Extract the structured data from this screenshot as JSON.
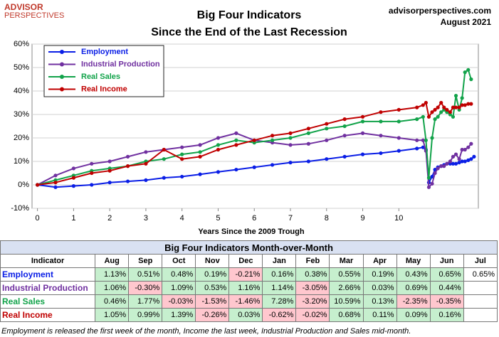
{
  "header": {
    "logo_top": "ADVISOR",
    "logo_bottom": "PERSPECTIVES",
    "site": "advisorperspectives.com",
    "date": "August 2021"
  },
  "chart_data": {
    "type": "line",
    "title": "Big Four Indicators",
    "subtitle": "Since the End of the Last Recession",
    "xlabel": "Years Since the 2009 Trough",
    "x": [
      0,
      0.5,
      1,
      1.5,
      2,
      2.5,
      3,
      3.5,
      4,
      4.5,
      5,
      5.5,
      6,
      6.5,
      7,
      7.5,
      8,
      8.5,
      9,
      9.5,
      10,
      10.5,
      10.67,
      10.75,
      10.83,
      10.92,
      11,
      11.08,
      11.17,
      11.25,
      11.33,
      11.42,
      11.5,
      11.58,
      11.67,
      11.75,
      11.83,
      11.92,
      12,
      12.08
    ],
    "xlim": [
      -0.15,
      12.2
    ],
    "xticks": [
      0,
      1,
      2,
      3,
      4,
      5,
      6,
      7,
      8,
      9,
      10
    ],
    "ylim": [
      -10,
      60
    ],
    "yticks": [
      {
        "value": -10,
        "label": "-10%"
      },
      {
        "value": 0,
        "label": "0%"
      },
      {
        "value": 10,
        "label": "10%"
      },
      {
        "value": 20,
        "label": "20%"
      },
      {
        "value": 30,
        "label": "30%"
      },
      {
        "value": 40,
        "label": "40%"
      },
      {
        "value": 50,
        "label": "50%"
      },
      {
        "value": 60,
        "label": "60%"
      }
    ],
    "grid": true,
    "legend": "upper left",
    "series": [
      {
        "name": "Employment",
        "color": "#0a1ee6",
        "values": [
          0,
          -1,
          -0.5,
          0,
          1,
          1.5,
          2,
          3,
          3.5,
          4.5,
          5.5,
          6.5,
          7.5,
          8.5,
          9.5,
          10,
          11,
          12,
          13,
          13.5,
          14.5,
          15.5,
          16,
          15,
          1,
          3.5,
          6.5,
          7.5,
          8,
          8.5,
          9,
          9,
          9,
          9,
          9.5,
          10,
          10,
          10.5,
          11,
          12
        ]
      },
      {
        "name": "Industrial Production",
        "color": "#7030a0",
        "values": [
          0,
          4,
          7,
          9,
          10,
          12,
          14,
          15,
          16,
          17,
          20,
          22,
          19,
          18,
          17,
          17.5,
          19,
          21,
          22,
          21,
          20,
          19,
          19,
          14.5,
          -1,
          0.5,
          5,
          7,
          8,
          8,
          9,
          10,
          12,
          13,
          11,
          15,
          15,
          16,
          17.5,
          null
        ]
      },
      {
        "name": "Real Sales",
        "color": "#12a34a",
        "values": [
          0,
          2,
          4,
          6,
          7,
          8,
          10,
          11,
          13,
          14,
          17,
          19,
          18,
          19,
          20,
          22,
          24,
          25,
          27,
          27,
          27,
          28,
          29,
          19,
          3,
          20,
          28,
          29,
          31,
          32,
          31,
          30,
          29,
          38,
          32,
          37,
          48,
          49,
          45,
          null
        ]
      },
      {
        "name": "Real Income",
        "color": "#c00000",
        "values": [
          0,
          1,
          3,
          5,
          6,
          8,
          9,
          15,
          11,
          12,
          15,
          17,
          19,
          21,
          22,
          24,
          26,
          28,
          29,
          31,
          32,
          33,
          34,
          35,
          29,
          31,
          32,
          33,
          35,
          33,
          32,
          31,
          33,
          33,
          33,
          34,
          34,
          34.5,
          34.5,
          null
        ]
      }
    ]
  },
  "table": {
    "title": "Big Four Indicators Month-over-Month",
    "columns": [
      "Indicator",
      "Aug",
      "Sep",
      "Oct",
      "Nov",
      "Dec",
      "Jan",
      "Feb",
      "Mar",
      "Apr",
      "May",
      "Jun",
      "Jul"
    ],
    "rows": [
      {
        "name": "Employment",
        "color": "#0a1ee6",
        "cells": [
          "1.13%",
          "0.51%",
          "0.48%",
          "0.19%",
          "-0.21%",
          "0.16%",
          "0.38%",
          "0.55%",
          "0.19%",
          "0.43%",
          "0.65%",
          "0.65%"
        ]
      },
      {
        "name": "Industrial Production",
        "color": "#7030a0",
        "cells": [
          "1.06%",
          "-0.30%",
          "1.09%",
          "0.53%",
          "1.16%",
          "1.14%",
          "-3.05%",
          "2.66%",
          "0.03%",
          "0.69%",
          "0.44%",
          null
        ]
      },
      {
        "name": "Real Sales",
        "color": "#12a34a",
        "cells": [
          "0.46%",
          "1.77%",
          "-0.03%",
          "-1.53%",
          "-1.46%",
          "7.28%",
          "-3.20%",
          "10.59%",
          "0.13%",
          "-2.35%",
          "-0.35%",
          null
        ]
      },
      {
        "name": "Real Income",
        "color": "#c00000",
        "cells": [
          "1.05%",
          "0.99%",
          "1.39%",
          "-0.26%",
          "0.03%",
          "-0.62%",
          "-0.02%",
          "0.68%",
          "0.11%",
          "0.09%",
          "0.16%",
          null
        ]
      }
    ]
  },
  "footnote": "Employment is released the first week of the month, Income the last week, Industrial Production and Sales mid-month."
}
